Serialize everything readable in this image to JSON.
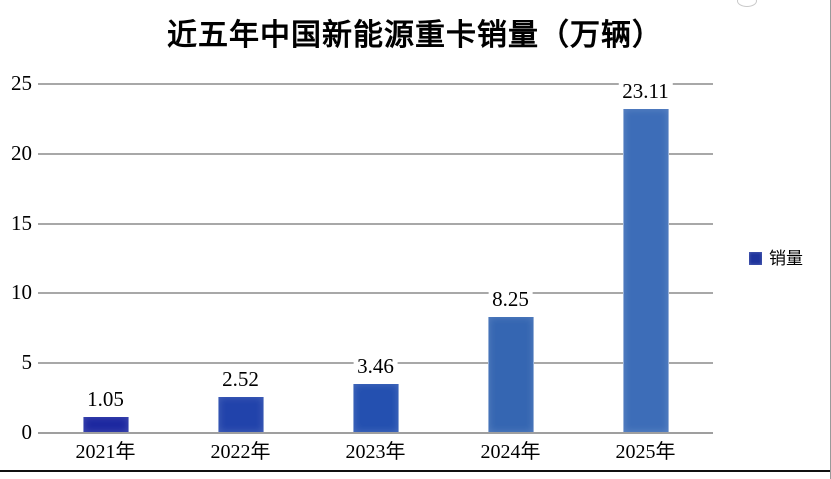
{
  "chart_data": {
    "type": "bar",
    "title": "近五年中国新能源重卡销量（万辆）",
    "categories": [
      "2021年",
      "2022年",
      "2023年",
      "2024年",
      "2025年"
    ],
    "values": [
      1.05,
      2.52,
      3.46,
      8.25,
      23.11
    ],
    "value_labels": [
      "1.05",
      "2.52",
      "3.46",
      "8.25",
      "23.11"
    ],
    "series_name": "销量",
    "bar_colors": [
      "#1c27a0",
      "#2143ab",
      "#2450b0",
      "#3566b2",
      "#3d6db8"
    ],
    "y_ticks": [
      0,
      5,
      10,
      15,
      20,
      25
    ],
    "y_tick_labels": [
      "0",
      "5",
      "10",
      "15",
      "20",
      "25"
    ],
    "ylim": [
      0,
      25
    ],
    "grid": true,
    "gridline_color": "#a8a8a8",
    "legend_position": "right",
    "legend_color": "#1e339c",
    "xlabel": "",
    "ylabel": ""
  },
  "legend": {
    "label": "销量"
  }
}
